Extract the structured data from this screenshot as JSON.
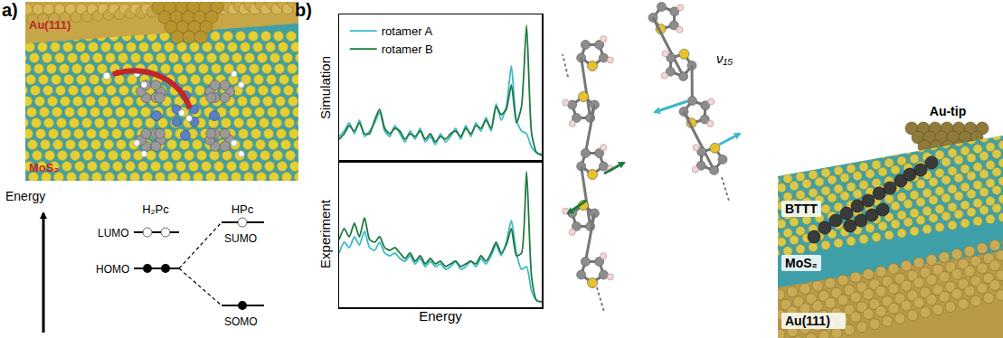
{
  "chart_data": [
    {
      "type": "line",
      "ylabel": "Simulation",
      "x": [
        0,
        2.5,
        5,
        7.5,
        10,
        12.5,
        15,
        17.5,
        20,
        22.5,
        25,
        27.5,
        30,
        32.5,
        35,
        37.5,
        40,
        42.5,
        45,
        47.5,
        50,
        52.5,
        55,
        57.5,
        60,
        62.5,
        65,
        67.5,
        70,
        72.5,
        75,
        77.5,
        80,
        82.5,
        85,
        87.5,
        90,
        92.5,
        95,
        97.5,
        100
      ],
      "series": [
        {
          "name": "rotamer A",
          "color": "#3cb8cc",
          "values": [
            18,
            22,
            28,
            20,
            30,
            18,
            22,
            28,
            36,
            22,
            18,
            26,
            20,
            14,
            22,
            16,
            24,
            14,
            18,
            12,
            20,
            14,
            18,
            24,
            16,
            26,
            18,
            28,
            22,
            32,
            22,
            42,
            30,
            40,
            70,
            30,
            22,
            20,
            10,
            6,
            5
          ]
        },
        {
          "name": "rotamer B",
          "color": "#1f7a3e",
          "values": [
            16,
            20,
            26,
            22,
            28,
            20,
            20,
            30,
            38,
            24,
            20,
            24,
            22,
            16,
            20,
            18,
            22,
            16,
            20,
            14,
            18,
            16,
            20,
            22,
            18,
            24,
            20,
            26,
            24,
            30,
            24,
            40,
            34,
            38,
            56,
            28,
            40,
            100,
            20,
            6,
            4
          ]
        }
      ],
      "xlim": [
        0,
        100
      ],
      "ylim": [
        0,
        108
      ],
      "tick_labels": false,
      "legend": "upper left"
    },
    {
      "type": "line",
      "ylabel": "Experiment",
      "xlabel": "Energy",
      "x": [
        0,
        2.5,
        5,
        7.5,
        10,
        12.5,
        15,
        17.5,
        20,
        22.5,
        25,
        27.5,
        30,
        32.5,
        35,
        37.5,
        40,
        42.5,
        45,
        47.5,
        50,
        52.5,
        55,
        57.5,
        60,
        62.5,
        65,
        67.5,
        70,
        72.5,
        75,
        77.5,
        80,
        82.5,
        85,
        87.5,
        90,
        92.5,
        95,
        97.5,
        100
      ],
      "series": [
        {
          "name": "rotamer A",
          "color": "#3cb8cc",
          "values": [
            40,
            48,
            44,
            52,
            46,
            56,
            44,
            42,
            48,
            40,
            38,
            40,
            36,
            34,
            38,
            32,
            36,
            30,
            34,
            30,
            32,
            28,
            30,
            34,
            28,
            30,
            34,
            30,
            36,
            32,
            38,
            46,
            38,
            48,
            64,
            40,
            28,
            30,
            12,
            5,
            4
          ]
        },
        {
          "name": "rotamer B",
          "color": "#1f7a3e",
          "values": [
            50,
            58,
            52,
            62,
            52,
            66,
            50,
            48,
            52,
            44,
            42,
            44,
            40,
            36,
            40,
            34,
            38,
            32,
            36,
            32,
            34,
            30,
            32,
            34,
            30,
            32,
            34,
            32,
            38,
            34,
            40,
            48,
            40,
            46,
            58,
            38,
            40,
            100,
            22,
            5,
            4
          ]
        }
      ],
      "xlim": [
        0,
        100
      ],
      "ylim": [
        0,
        108
      ],
      "tick_labels": false
    }
  ],
  "panel_a": {
    "label": "a)",
    "substrate_labels": [
      "Au(111)",
      "MoS₂"
    ],
    "energy_axis": "Energy",
    "columns": [
      "H₂Pc",
      "HPc"
    ],
    "levels": {
      "left": [
        "LUMO",
        "HOMO"
      ],
      "right": [
        "SUMO",
        "SOMO"
      ]
    }
  },
  "panel_b": {
    "label": "b)",
    "mode_label": "ν₁₅",
    "tip_label": "Au-tip",
    "layer_labels": [
      "BTTT",
      "MoS₂",
      "Au(111)"
    ]
  }
}
